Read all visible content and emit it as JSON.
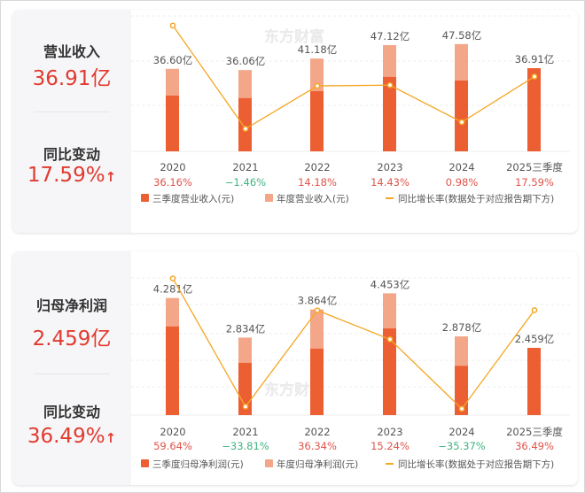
{
  "watermark": "东方财富",
  "colors": {
    "q3_bar": "#ec5f33",
    "annual_bar": "#f4a688",
    "line": "#f5a623",
    "positive": "#e0534a",
    "negative": "#3fb37f",
    "value_red": "#e23a2e"
  },
  "panels": [
    {
      "metric_label": "营业收入",
      "metric_value": "36.91亿",
      "change_label": "同比变动",
      "change_value": "17.59%",
      "change_icon": "arrow-up-icon",
      "arrow_glyph": "↑"
    },
    {
      "metric_label": "归母净利润",
      "metric_value": "2.459亿",
      "change_label": "同比变动",
      "change_value": "36.49%",
      "change_icon": "arrow-up-icon",
      "arrow_glyph": "↑"
    }
  ],
  "chart_data": [
    {
      "type": "bar",
      "title": "",
      "categories": [
        "2020",
        "2021",
        "2022",
        "2023",
        "2024",
        "2025三季度"
      ],
      "series": [
        {
          "name": "三季度营业收入(元)",
          "unit": "亿",
          "values": [
            24.7,
            23.6,
            26.7,
            33.0,
            31.4,
            36.91
          ]
        },
        {
          "name": "年度营业收入(元)",
          "unit": "亿",
          "values": [
            36.6,
            36.06,
            41.18,
            47.12,
            47.58,
            null
          ]
        },
        {
          "name": "同比增长率(数据处于对应报告期下方)",
          "type": "line",
          "unit": "%",
          "values": [
            36.16,
            -1.46,
            14.18,
            14.43,
            0.98,
            17.59
          ]
        }
      ],
      "value_labels": [
        "36.60亿",
        "36.06亿",
        "41.18亿",
        "47.12亿",
        "47.58亿",
        "36.91亿"
      ],
      "growth_labels": [
        "36.16%",
        "-1.46%",
        "14.18%",
        "14.43%",
        "0.98%",
        "17.59%"
      ],
      "grid": true,
      "legend": "bottom"
    },
    {
      "type": "bar",
      "title": "",
      "categories": [
        "2020",
        "2021",
        "2022",
        "2023",
        "2024",
        "2025三季度"
      ],
      "series": [
        {
          "name": "三季度归母净利润(元)",
          "unit": "亿",
          "values": [
            3.24,
            1.91,
            2.43,
            3.17,
            1.8,
            2.459
          ]
        },
        {
          "name": "年度归母净利润(元)",
          "unit": "亿",
          "values": [
            4.281,
            2.834,
            3.864,
            4.453,
            2.878,
            null
          ]
        },
        {
          "name": "同比增长率(数据处于对应报告期下方)",
          "type": "line",
          "unit": "%",
          "values": [
            59.64,
            -33.81,
            36.34,
            15.24,
            -35.37,
            36.49
          ]
        }
      ],
      "value_labels": [
        "4.281亿",
        "2.834亿",
        "3.864亿",
        "4.453亿",
        "2.878亿",
        "2.459亿"
      ],
      "growth_labels": [
        "59.64%",
        "-33.81%",
        "36.34%",
        "15.24%",
        "-35.37%",
        "36.49%"
      ],
      "grid": true,
      "legend": "bottom"
    }
  ]
}
